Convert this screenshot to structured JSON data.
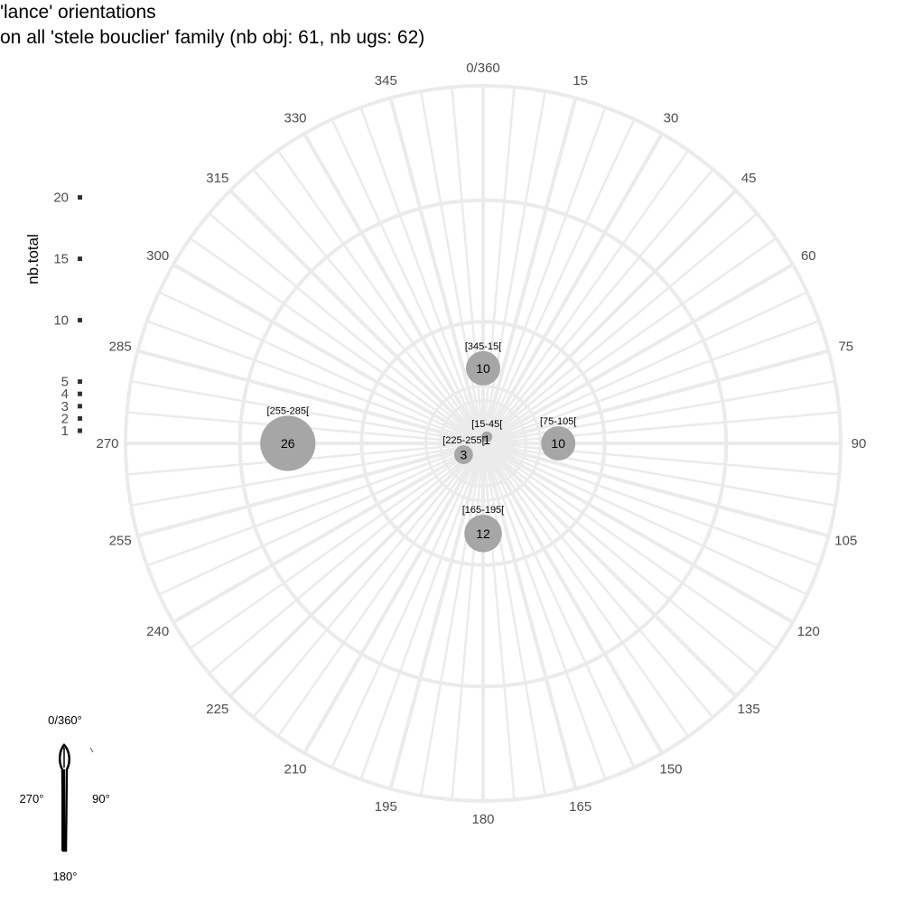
{
  "title_line1": "'lance' orientations",
  "title_line2": "on all 'stele bouclier' family (nb obj: 61, nb ugs: 62)",
  "chart_data": {
    "type": "scatter",
    "coord": "polar",
    "angle_ticks": [
      "0/360",
      "15",
      "30",
      "45",
      "60",
      "75",
      "90",
      "105",
      "120",
      "135",
      "150",
      "165",
      "180",
      "195",
      "210",
      "225",
      "240",
      "255",
      "270",
      "285",
      "300",
      "315",
      "330",
      "345"
    ],
    "size_legend": {
      "title": "nb.total",
      "breaks": [
        "1",
        "2",
        "3",
        "4",
        "5",
        "10",
        "15",
        "20"
      ]
    },
    "points": [
      {
        "range": "[345-15[",
        "angle": 0,
        "radius": 0.2,
        "value": 10,
        "label": "10"
      },
      {
        "range": "[15-45[",
        "angle": 30,
        "radius": 0.02,
        "value": 1,
        "label": "1"
      },
      {
        "range": "[75-105[",
        "angle": 90,
        "radius": 0.2,
        "value": 10,
        "label": "10"
      },
      {
        "range": "[165-195[",
        "angle": 180,
        "radius": 0.24,
        "value": 12,
        "label": "12"
      },
      {
        "range": "[225-255[",
        "angle": 240,
        "radius": 0.06,
        "value": 3,
        "label": "3"
      },
      {
        "range": "[255-285[",
        "angle": 270,
        "radius": 0.52,
        "value": 26,
        "label": "26"
      }
    ],
    "grid": true
  },
  "compass": {
    "top": "0/360°",
    "left": "270°",
    "right": "90°",
    "bottom": "180°"
  },
  "colors": {
    "grid": "#ebebeb",
    "bubble": "#a6a6a6",
    "legend_marker": "#333333"
  }
}
